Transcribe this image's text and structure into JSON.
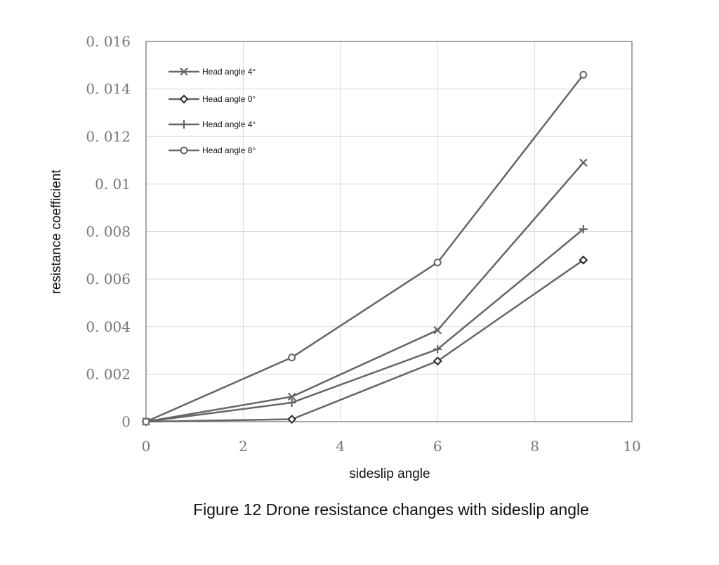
{
  "figure_caption": "Figure 12 Drone resistance changes with sideslip angle",
  "chart_data": {
    "type": "line",
    "title": "",
    "xlabel": "sideslip angle",
    "ylabel": "resistance coefficient",
    "xlim": [
      0,
      10
    ],
    "ylim": [
      0,
      0.016
    ],
    "x_ticks": [
      0,
      2,
      4,
      6,
      8,
      10
    ],
    "x_tick_labels": [
      "0",
      "2",
      "4",
      "6",
      "8",
      "10"
    ],
    "y_ticks": [
      0,
      0.002,
      0.004,
      0.006,
      0.008,
      0.01,
      0.012,
      0.014,
      0.016
    ],
    "y_tick_labels": [
      "0",
      "0. 002",
      "0. 004",
      "0. 006",
      "0. 008",
      "0. 01",
      "0. 012",
      "0. 014",
      "0. 016"
    ],
    "grid": true,
    "legend_position": "top-left",
    "line_color": "#666666",
    "x": [
      0,
      3,
      6,
      9
    ],
    "series": [
      {
        "name": "Head angle 4°",
        "marker": "x",
        "values": [
          0,
          0.00105,
          0.00385,
          0.0109
        ]
      },
      {
        "name": "Head angle 0°",
        "marker": "diamond",
        "values": [
          0,
          0.0001,
          0.00255,
          0.0068
        ]
      },
      {
        "name": "Head angle 4°",
        "marker": "plus",
        "values": [
          0,
          0.0008,
          0.00305,
          0.0081
        ]
      },
      {
        "name": "Head angle 8°",
        "marker": "circle",
        "values": [
          0,
          0.0027,
          0.0067,
          0.0146
        ]
      }
    ]
  }
}
